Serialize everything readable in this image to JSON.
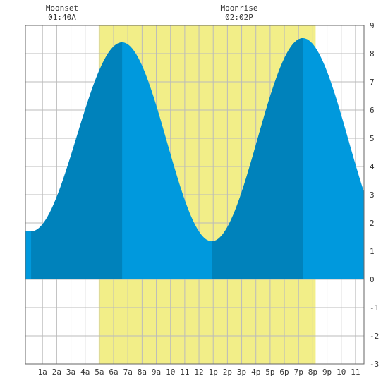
{
  "header": {
    "moonset_title": "Moonset",
    "moonset_time": "01:40A",
    "moonrise_title": "Moonrise",
    "moonrise_time": "02:02P"
  },
  "colors": {
    "daylight": "#f2ee88",
    "tide_light": "#0099dd",
    "tide_dark": "#0082bb",
    "grid": "#bbbbbb",
    "border": "#666666"
  },
  "chart_data": {
    "type": "area",
    "xlabel": "",
    "ylabel": "",
    "ylim": [
      -3,
      9
    ],
    "xlim_hours": [
      -0.2,
      23.6
    ],
    "grid": true,
    "x_ticks": [
      {
        "hour": 1,
        "label": "1a"
      },
      {
        "hour": 2,
        "label": "2a"
      },
      {
        "hour": 3,
        "label": "3a"
      },
      {
        "hour": 4,
        "label": "4a"
      },
      {
        "hour": 5,
        "label": "5a"
      },
      {
        "hour": 6,
        "label": "6a"
      },
      {
        "hour": 7,
        "label": "7a"
      },
      {
        "hour": 8,
        "label": "8a"
      },
      {
        "hour": 9,
        "label": "9a"
      },
      {
        "hour": 10,
        "label": "10"
      },
      {
        "hour": 11,
        "label": "11"
      },
      {
        "hour": 12,
        "label": "12"
      },
      {
        "hour": 13,
        "label": "1p"
      },
      {
        "hour": 14,
        "label": "2p"
      },
      {
        "hour": 15,
        "label": "3p"
      },
      {
        "hour": 16,
        "label": "4p"
      },
      {
        "hour": 17,
        "label": "5p"
      },
      {
        "hour": 18,
        "label": "6p"
      },
      {
        "hour": 19,
        "label": "7p"
      },
      {
        "hour": 20,
        "label": "8p"
      },
      {
        "hour": 21,
        "label": "9p"
      },
      {
        "hour": 22,
        "label": "10"
      },
      {
        "hour": 23,
        "label": "11"
      }
    ],
    "y_ticks": [
      9,
      8,
      7,
      6,
      5,
      4,
      3,
      2,
      1,
      0,
      -1,
      -2,
      -3
    ],
    "daylight_hours": [
      4.95,
      20.2
    ],
    "moonset_hour": 1.67,
    "moonrise_hour": 14.03,
    "dark_band_hours": [
      [
        0.2,
        6.6
      ],
      [
        12.9,
        19.3
      ]
    ],
    "tide_extrema": [
      {
        "hour": 0.2,
        "height": 1.7,
        "type": "low"
      },
      {
        "hour": 6.6,
        "height": 8.4,
        "type": "high"
      },
      {
        "hour": 12.9,
        "height": 1.35,
        "type": "low"
      },
      {
        "hour": 19.3,
        "height": 8.55,
        "type": "high"
      }
    ]
  }
}
